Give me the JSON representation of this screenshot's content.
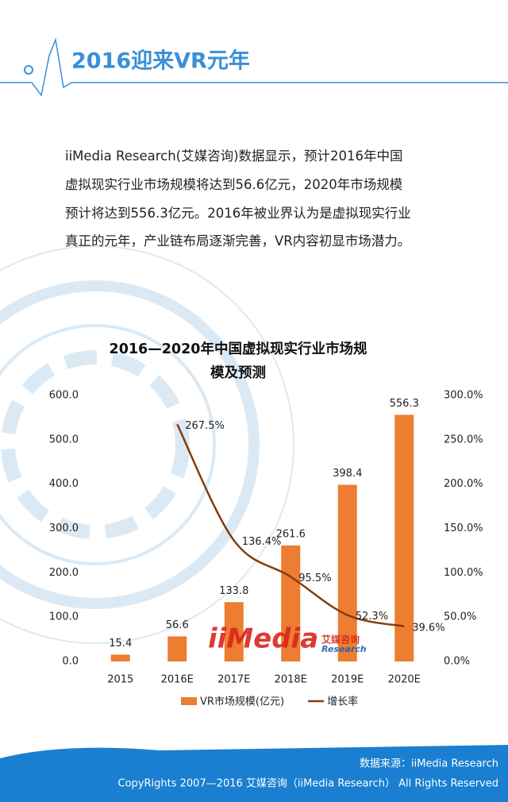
{
  "header": {
    "title": "2016迎来VR元年"
  },
  "body": {
    "lines": [
      "iiMedia Research(艾媒咨询)数据显示，预计2016年中国",
      "虚拟现实行业市场规模将达到56.6亿元，2020年市场规模",
      "预计将达到556.3亿元。2016年被业界认为是虚拟现实行业",
      "真正的元年，产业链布局逐渐完善，VR内容初显市场潜力。"
    ]
  },
  "chart_data": {
    "type": "bar",
    "title": "2016—2020年中国虚拟现实行业市场规模及预测",
    "categories": [
      "2015",
      "2016E",
      "2017E",
      "2018E",
      "2019E",
      "2020E"
    ],
    "series": [
      {
        "name": "VR市场规模(亿元)",
        "type": "bar",
        "color": "#ed7d31",
        "values": [
          15.4,
          56.6,
          133.8,
          261.6,
          398.4,
          556.3
        ]
      },
      {
        "name": "增长率",
        "type": "line",
        "axis": "y2",
        "color": "#843c0c",
        "values": [
          null,
          267.5,
          136.4,
          95.5,
          52.3,
          39.6
        ],
        "value_labels": [
          null,
          "267.5%",
          "136.4%",
          "95.5%",
          "52.3%",
          "39.6%"
        ]
      }
    ],
    "ylim": [
      0,
      600
    ],
    "yticks": [
      {
        "value": 0,
        "label": "0.0"
      },
      {
        "value": 100,
        "label": "100.0"
      },
      {
        "value": 200,
        "label": "200.0"
      },
      {
        "value": 300,
        "label": "300.0"
      },
      {
        "value": 400,
        "label": "400.0"
      },
      {
        "value": 500,
        "label": "500.0"
      },
      {
        "value": 600,
        "label": "600.0"
      }
    ],
    "y2lim": [
      0,
      300
    ],
    "y2ticks": [
      {
        "value": 0,
        "label": "0.0%"
      },
      {
        "value": 50,
        "label": "50.0%"
      },
      {
        "value": 100,
        "label": "100.0%"
      },
      {
        "value": 150,
        "label": "150.0%"
      },
      {
        "value": 200,
        "label": "200.0%"
      },
      {
        "value": 250,
        "label": "250.0%"
      },
      {
        "value": 300,
        "label": "300.0%"
      }
    ],
    "legend": "bottom"
  },
  "watermark": {
    "logo": "iiMedia",
    "cn": "艾媒咨询",
    "sub": "Research"
  },
  "footer": {
    "source": "数据来源：iiMedia Research",
    "copyright": "CopyRights 2007—2016 艾媒咨询（iiMedia Research） All Rights Reserved"
  }
}
